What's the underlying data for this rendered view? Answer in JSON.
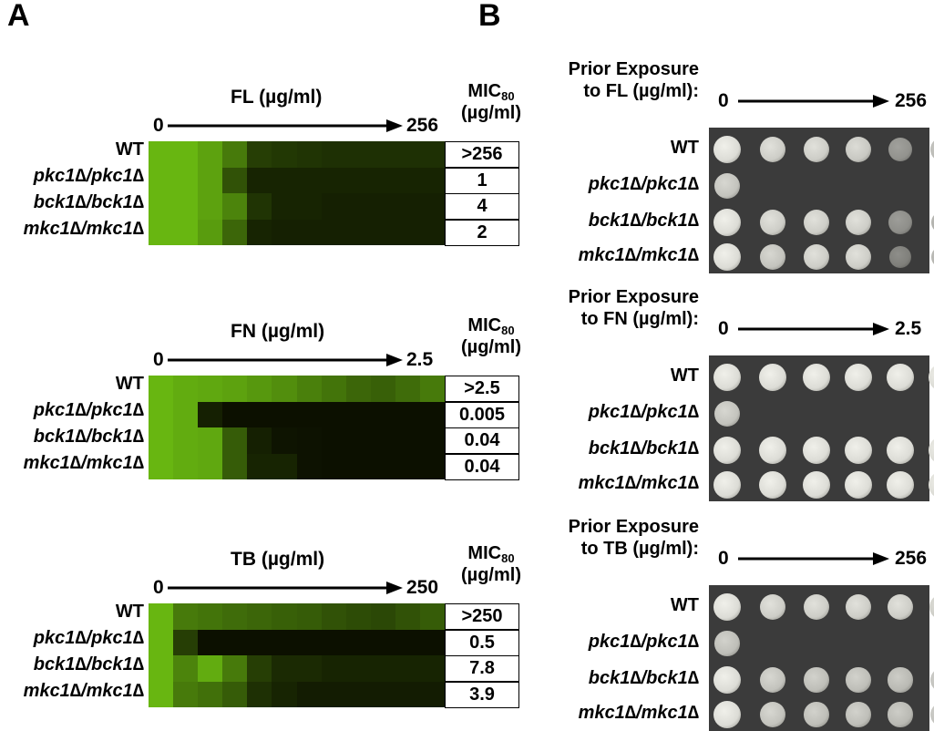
{
  "panels": {
    "a_label": "A",
    "b_label": "B"
  },
  "strains": [
    "WT",
    "pkc1∆/pkc1∆",
    "bck1∆/bck1∆",
    "mkc1∆/mkc1∆"
  ],
  "mic_header": {
    "main": "MIC",
    "sub": "80",
    "unit": "(µg/ml)"
  },
  "panel_a": [
    {
      "drug_label": "FL (µg/ml)",
      "scale_min": "0",
      "scale_max": "256",
      "mic_values": [
        ">256",
        "1",
        "4",
        "2"
      ],
      "growth": [
        [
          0.85,
          0.85,
          0.75,
          0.55,
          0.25,
          0.22,
          0.2,
          0.18,
          0.18,
          0.18,
          0.18,
          0.18
        ],
        [
          0.85,
          0.85,
          0.75,
          0.35,
          0.12,
          0.12,
          0.12,
          0.12,
          0.12,
          0.12,
          0.12,
          0.12
        ],
        [
          0.85,
          0.85,
          0.75,
          0.6,
          0.2,
          0.12,
          0.12,
          0.1,
          0.1,
          0.1,
          0.1,
          0.1
        ],
        [
          0.85,
          0.85,
          0.72,
          0.45,
          0.12,
          0.1,
          0.1,
          0.1,
          0.1,
          0.1,
          0.1,
          0.1
        ]
      ]
    },
    {
      "drug_label": "FN (µg/ml)",
      "scale_min": "0",
      "scale_max": "2.5",
      "mic_values": [
        ">2.5",
        "0.005",
        "0.04",
        "0.04"
      ],
      "growth": [
        [
          0.85,
          0.8,
          0.78,
          0.75,
          0.7,
          0.65,
          0.58,
          0.52,
          0.45,
          0.42,
          0.48,
          0.55
        ],
        [
          0.85,
          0.8,
          0.1,
          0.02,
          0.02,
          0.02,
          0.02,
          0.02,
          0.02,
          0.02,
          0.02,
          0.02
        ],
        [
          0.85,
          0.8,
          0.78,
          0.4,
          0.1,
          0.04,
          0.03,
          0.02,
          0.02,
          0.02,
          0.02,
          0.02
        ],
        [
          0.85,
          0.8,
          0.78,
          0.4,
          0.12,
          0.12,
          0.03,
          0.02,
          0.02,
          0.02,
          0.02,
          0.02
        ]
      ]
    },
    {
      "drug_label": "TB (µg/ml)",
      "scale_min": "0",
      "scale_max": "250",
      "mic_values": [
        ">250",
        "0.5",
        "7.8",
        "3.9"
      ],
      "growth": [
        [
          0.85,
          0.55,
          0.52,
          0.48,
          0.45,
          0.42,
          0.4,
          0.35,
          0.32,
          0.3,
          0.35,
          0.4
        ],
        [
          0.85,
          0.25,
          0.02,
          0.02,
          0.02,
          0.02,
          0.02,
          0.02,
          0.02,
          0.02,
          0.02,
          0.02
        ],
        [
          0.85,
          0.6,
          0.8,
          0.55,
          0.25,
          0.15,
          0.15,
          0.12,
          0.12,
          0.12,
          0.12,
          0.12
        ],
        [
          0.85,
          0.55,
          0.5,
          0.4,
          0.18,
          0.12,
          0.08,
          0.08,
          0.08,
          0.08,
          0.08,
          0.08
        ]
      ]
    }
  ],
  "panel_b": [
    {
      "prior_line1": "Prior Exposure",
      "prior_line2": "to FL (µg/ml):",
      "scale_min": "0",
      "scale_max": "256",
      "spots": [
        [
          1.0,
          0.85,
          0.85,
          0.8,
          0.55,
          0.45
        ],
        [
          0.75,
          0,
          0,
          0,
          0,
          0
        ],
        [
          1.0,
          0.85,
          0.85,
          0.85,
          0.5,
          0.3
        ],
        [
          1.0,
          0.75,
          0.85,
          0.85,
          0.3,
          0.35
        ]
      ]
    },
    {
      "prior_line1": "Prior Exposure",
      "prior_line2": "to FN (µg/ml):",
      "scale_min": "0",
      "scale_max": "2.5",
      "spots": [
        [
          1.0,
          1.0,
          1.0,
          1.0,
          1.0,
          1.0
        ],
        [
          0.75,
          0,
          0,
          0,
          0,
          0
        ],
        [
          1.0,
          1.0,
          1.0,
          1.0,
          1.0,
          1.0
        ],
        [
          1.0,
          1.0,
          1.0,
          1.0,
          1.0,
          1.0
        ]
      ]
    },
    {
      "prior_line1": "Prior Exposure",
      "prior_line2": "to TB (µg/ml):",
      "scale_min": "0",
      "scale_max": "256",
      "spots": [
        [
          1.0,
          0.85,
          0.85,
          0.85,
          0.85,
          0.85
        ],
        [
          0.7,
          0,
          0,
          0,
          0,
          0
        ],
        [
          1.0,
          0.75,
          0.7,
          0.7,
          0.65,
          0.55
        ],
        [
          1.0,
          0.75,
          0.7,
          0.7,
          0.65,
          0.55
        ]
      ]
    }
  ]
}
